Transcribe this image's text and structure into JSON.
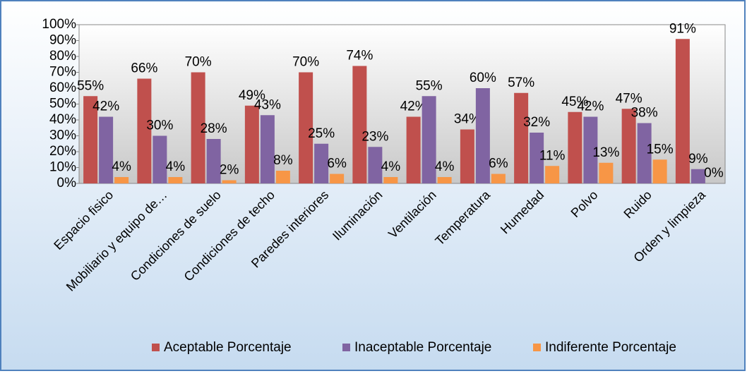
{
  "chart_data": {
    "type": "bar",
    "categories": [
      "Espacio fisico",
      "Mobiliario y equipo de…",
      "Condiciones de suelo",
      "Condiciones de techo",
      "Paredes interiores",
      "Iluminación",
      "Ventilación",
      "Temperatura",
      "Humedad",
      "Polvo",
      "Ruido",
      "Orden y limpieza"
    ],
    "series": [
      {
        "name": "Aceptable Porcentaje",
        "color": "#c0504d",
        "values": [
          55,
          66,
          70,
          49,
          70,
          74,
          42,
          34,
          57,
          45,
          47,
          91
        ],
        "value_labels": [
          "55%",
          "66%",
          "70%",
          "49%",
          "70%",
          "74%",
          "42%",
          "34%",
          "57%",
          "45%",
          "47%",
          "91%"
        ]
      },
      {
        "name": "Inaceptable Porcentaje",
        "color": "#8064a2",
        "values": [
          42,
          30,
          28,
          43,
          25,
          23,
          55,
          60,
          32,
          42,
          38,
          9
        ],
        "value_labels": [
          "42%",
          "30%",
          "28%",
          "43%",
          "25%",
          "23%",
          "55%",
          "60%",
          "32%",
          "42%",
          "38%",
          "9%"
        ]
      },
      {
        "name": "Indiferente Porcentaje",
        "color": "#f79646",
        "values": [
          4,
          4,
          2,
          8,
          6,
          4,
          4,
          6,
          11,
          13,
          15,
          0
        ],
        "value_labels": [
          "4%",
          "4%",
          "2%",
          "8%",
          "6%",
          "4%",
          "4%",
          "6%",
          "11%",
          "13%",
          "15%",
          "0%"
        ]
      }
    ],
    "ylim": [
      0,
      100
    ],
    "yticks": [
      {
        "value": 0,
        "label": "0%"
      },
      {
        "value": 10,
        "label": "10%"
      },
      {
        "value": 20,
        "label": "20%"
      },
      {
        "value": 30,
        "label": "30%"
      },
      {
        "value": 40,
        "label": "40%"
      },
      {
        "value": 50,
        "label": "50%"
      },
      {
        "value": 60,
        "label": "60%"
      },
      {
        "value": 70,
        "label": "70%"
      },
      {
        "value": 80,
        "label": "80%"
      },
      {
        "value": 90,
        "label": "90%"
      },
      {
        "value": 100,
        "label": "100%"
      }
    ],
    "legend": "bottom"
  }
}
